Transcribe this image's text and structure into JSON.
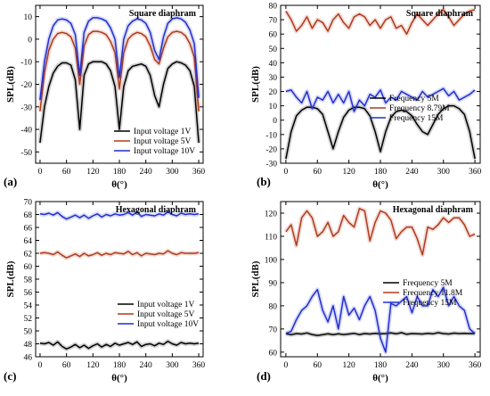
{
  "chart_data": [
    {
      "type": "line",
      "panel_label": "(a)",
      "title": "Square diaphram",
      "xlabel": "θ(°)",
      "ylabel": "SPL(dB)",
      "xlim": [
        -10,
        370
      ],
      "ylim": [
        -55,
        15
      ],
      "xticks": [
        0,
        60,
        120,
        180,
        240,
        300,
        360
      ],
      "yticks": [
        -50,
        -40,
        -30,
        -20,
        -10,
        0,
        10
      ],
      "legend_position": "bottom-right",
      "series": [
        {
          "name": "Input voltage 1V",
          "color": "#000000",
          "x": [
            0,
            10,
            20,
            30,
            40,
            50,
            60,
            70,
            80,
            90,
            100,
            110,
            120,
            130,
            140,
            150,
            160,
            170,
            180,
            190,
            200,
            210,
            220,
            230,
            240,
            250,
            260,
            270,
            280,
            290,
            300,
            310,
            320,
            330,
            340,
            350,
            360
          ],
          "y": [
            -46,
            -30,
            -21,
            -15,
            -12,
            -10.5,
            -10.5,
            -11.5,
            -18,
            -40,
            -16,
            -11,
            -10,
            -10,
            -10,
            -11,
            -14,
            -21,
            -40,
            -21,
            -14,
            -12,
            -11.5,
            -11,
            -12,
            -16,
            -25,
            -30,
            -20,
            -13,
            -11,
            -10,
            -10.5,
            -11.5,
            -14,
            -21,
            -46
          ]
        },
        {
          "name": "Input voltage 5V",
          "color": "#b03a1a",
          "x": [
            0,
            10,
            20,
            30,
            40,
            50,
            60,
            70,
            80,
            90,
            100,
            110,
            120,
            130,
            140,
            150,
            160,
            170,
            180,
            190,
            200,
            210,
            220,
            230,
            240,
            250,
            260,
            270,
            280,
            290,
            300,
            310,
            320,
            330,
            340,
            350,
            360
          ],
          "y": [
            -32,
            -15,
            -5,
            0,
            2.5,
            3,
            2.5,
            1,
            -4,
            -20,
            -3,
            2,
            3.5,
            3.5,
            3,
            2,
            -1,
            -6,
            -22,
            -6,
            0,
            2,
            3,
            2.5,
            1,
            -3,
            -9,
            -11,
            -4,
            1,
            3,
            3.5,
            3,
            1.5,
            -2,
            -8,
            -32
          ]
        },
        {
          "name": "Input voltage 10V",
          "color": "#1f2fd0",
          "x": [
            0,
            10,
            20,
            30,
            40,
            50,
            60,
            70,
            80,
            90,
            100,
            110,
            120,
            130,
            140,
            150,
            160,
            170,
            180,
            190,
            200,
            210,
            220,
            230,
            240,
            250,
            260,
            270,
            280,
            290,
            300,
            310,
            320,
            330,
            340,
            350,
            360
          ],
          "y": [
            -27,
            -10,
            0,
            6,
            8.5,
            9,
            8.5,
            7,
            2,
            -16,
            3,
            8,
            9.5,
            9.5,
            9,
            8,
            5,
            0,
            -17,
            0,
            6,
            8,
            9,
            8.5,
            7,
            3,
            -5,
            -9,
            1,
            7,
            9,
            9.5,
            9,
            7.5,
            4,
            -2,
            -26
          ]
        }
      ]
    },
    {
      "type": "line",
      "panel_label": "(b)",
      "title": "Square diaphram",
      "xlabel": "θ(°)",
      "ylabel": "SPL(dB)",
      "xlim": [
        -10,
        370
      ],
      "ylim": [
        -30,
        80
      ],
      "xticks": [
        0,
        60,
        120,
        180,
        240,
        300,
        360
      ],
      "yticks": [
        -30,
        -20,
        -10,
        0,
        10,
        20,
        30,
        40,
        50,
        60,
        70,
        80
      ],
      "legend_position": "center-right",
      "series": [
        {
          "name": "Frequency 5M",
          "color": "#000000",
          "x": [
            0,
            10,
            20,
            30,
            40,
            50,
            60,
            70,
            80,
            90,
            100,
            110,
            120,
            130,
            140,
            150,
            160,
            170,
            180,
            190,
            200,
            210,
            220,
            230,
            240,
            250,
            260,
            270,
            280,
            290,
            300,
            310,
            320,
            330,
            340,
            350,
            360
          ],
          "y": [
            -27,
            -8,
            3,
            7,
            9,
            9,
            8,
            4,
            -8,
            -20,
            -8,
            2,
            7,
            9,
            9,
            8,
            3,
            -8,
            -22,
            -8,
            2,
            6,
            7,
            6,
            3,
            -3,
            -8,
            -10,
            -3,
            4,
            8,
            10,
            10,
            8,
            4,
            -8,
            -27
          ]
        },
        {
          "name": "Frequency 8.79M",
          "color": "#b03a1a",
          "x": [
            0,
            10,
            20,
            30,
            40,
            50,
            60,
            70,
            80,
            90,
            100,
            110,
            120,
            130,
            140,
            150,
            160,
            170,
            180,
            190,
            200,
            210,
            220,
            230,
            240,
            250,
            260,
            270,
            280,
            290,
            300,
            310,
            320,
            330,
            340,
            350,
            360
          ],
          "y": [
            76,
            70,
            62,
            66,
            72,
            64,
            70,
            68,
            62,
            70,
            74,
            68,
            64,
            72,
            74,
            72,
            66,
            70,
            64,
            70,
            72,
            64,
            66,
            60,
            68,
            74,
            70,
            66,
            70,
            74,
            77,
            72,
            66,
            70,
            74,
            76,
            77
          ]
        },
        {
          "name": "Frequency 15M",
          "color": "#1f2fd0",
          "x": [
            0,
            10,
            20,
            30,
            40,
            50,
            60,
            70,
            80,
            90,
            100,
            110,
            120,
            130,
            140,
            150,
            160,
            170,
            180,
            190,
            200,
            210,
            220,
            230,
            240,
            250,
            260,
            270,
            280,
            290,
            300,
            310,
            320,
            330,
            340,
            350,
            360
          ],
          "y": [
            20,
            21,
            16,
            12,
            20,
            8,
            16,
            14,
            20,
            12,
            18,
            12,
            20,
            6,
            14,
            10,
            18,
            16,
            21,
            12,
            16,
            14,
            20,
            18,
            16,
            14,
            20,
            16,
            18,
            20,
            22,
            17,
            20,
            14,
            16,
            18,
            21
          ]
        }
      ]
    },
    {
      "type": "line",
      "panel_label": "(c)",
      "title": "Hexagonal diaphram",
      "xlabel": "θ(°)",
      "ylabel": "SPL(dB)",
      "xlim": [
        -10,
        370
      ],
      "ylim": [
        46,
        70
      ],
      "xticks": [
        0,
        60,
        120,
        180,
        240,
        300,
        360
      ],
      "yticks": [
        46,
        48,
        50,
        52,
        54,
        56,
        58,
        60,
        62,
        64,
        66,
        68,
        70
      ],
      "legend_position": "lower-right",
      "series": [
        {
          "name": "Input voltage 1V",
          "color": "#000000",
          "x": [
            0,
            10,
            20,
            30,
            40,
            50,
            60,
            70,
            80,
            90,
            100,
            110,
            120,
            130,
            140,
            150,
            160,
            170,
            180,
            190,
            200,
            210,
            220,
            230,
            240,
            250,
            260,
            270,
            280,
            290,
            300,
            310,
            320,
            330,
            340,
            350,
            360
          ],
          "y": [
            48.1,
            48.0,
            48.2,
            47.8,
            48.3,
            47.6,
            47.2,
            47.5,
            47.9,
            47.4,
            47.8,
            47.3,
            47.7,
            48.0,
            47.5,
            47.9,
            47.6,
            48.1,
            47.8,
            48.0,
            48.2,
            47.9,
            48.3,
            47.6,
            47.9,
            48.0,
            47.7,
            48.1,
            47.9,
            48.4,
            48.0,
            47.8,
            48.2,
            48.0,
            48.1,
            48.0,
            48.1
          ]
        },
        {
          "name": "Input voltage 5V",
          "color": "#b03a1a",
          "x": [
            0,
            10,
            20,
            30,
            40,
            50,
            60,
            70,
            80,
            90,
            100,
            110,
            120,
            130,
            140,
            150,
            160,
            170,
            180,
            190,
            200,
            210,
            220,
            230,
            240,
            250,
            260,
            270,
            280,
            290,
            300,
            310,
            320,
            330,
            340,
            350,
            360
          ],
          "y": [
            62.0,
            62.1,
            62.0,
            61.8,
            62.2,
            61.7,
            61.3,
            61.6,
            61.9,
            61.5,
            62.0,
            61.6,
            61.8,
            62.1,
            61.7,
            62.0,
            61.8,
            62.1,
            62.0,
            61.9,
            62.3,
            61.8,
            62.1,
            61.6,
            62.0,
            61.9,
            61.8,
            62.0,
            61.9,
            62.4,
            62.0,
            61.8,
            62.1,
            62.0,
            62.0,
            62.0,
            62.1
          ]
        },
        {
          "name": "Input voltage 10V",
          "color": "#1f2fd0",
          "x": [
            0,
            10,
            20,
            30,
            40,
            50,
            60,
            70,
            80,
            90,
            100,
            110,
            120,
            130,
            140,
            150,
            160,
            170,
            180,
            190,
            200,
            210,
            220,
            230,
            240,
            250,
            260,
            270,
            280,
            290,
            300,
            310,
            320,
            330,
            340,
            350,
            360
          ],
          "y": [
            68.1,
            68.0,
            68.2,
            67.9,
            68.3,
            67.7,
            67.3,
            67.6,
            67.9,
            67.5,
            67.9,
            67.4,
            67.8,
            68.1,
            67.6,
            68.0,
            67.8,
            68.1,
            67.9,
            68.0,
            68.3,
            67.9,
            68.4,
            67.7,
            68.0,
            67.9,
            67.8,
            68.1,
            67.9,
            68.4,
            68.0,
            67.8,
            68.2,
            68.0,
            68.1,
            68.0,
            68.1
          ]
        }
      ]
    },
    {
      "type": "line",
      "panel_label": "(d)",
      "title": "Hexagonal diaphram",
      "xlabel": "θ(°)",
      "ylabel": "SPL(dB)",
      "xlim": [
        -10,
        370
      ],
      "ylim": [
        58,
        125
      ],
      "xticks": [
        0,
        60,
        120,
        180,
        240,
        300,
        360
      ],
      "yticks": [
        60,
        70,
        80,
        90,
        100,
        110,
        120
      ],
      "legend_position": "center-right",
      "series": [
        {
          "name": "Frequency 5M",
          "color": "#000000",
          "x": [
            0,
            10,
            20,
            30,
            40,
            50,
            60,
            70,
            80,
            90,
            100,
            110,
            120,
            130,
            140,
            150,
            160,
            170,
            180,
            190,
            200,
            210,
            220,
            230,
            240,
            250,
            260,
            270,
            280,
            290,
            300,
            310,
            320,
            330,
            340,
            350,
            360
          ],
          "y": [
            68,
            67.5,
            68,
            67.8,
            68.3,
            67.6,
            67.2,
            67.5,
            67.9,
            67.5,
            67.9,
            67.6,
            67.8,
            68.1,
            67.6,
            68.0,
            67.8,
            68.1,
            67.9,
            68.0,
            68.3,
            67.9,
            68.4,
            67.7,
            68.0,
            67.9,
            67.8,
            68.1,
            67.9,
            68.4,
            68.0,
            67.8,
            68.2,
            68.0,
            68.1,
            68.0,
            68.0
          ]
        },
        {
          "name": "Frequency 11.8M",
          "color": "#b03a1a",
          "x": [
            0,
            10,
            20,
            30,
            40,
            50,
            60,
            70,
            80,
            90,
            100,
            110,
            120,
            130,
            140,
            150,
            160,
            170,
            180,
            190,
            200,
            210,
            220,
            230,
            240,
            250,
            260,
            270,
            280,
            290,
            300,
            310,
            320,
            330,
            340,
            350,
            360
          ],
          "y": [
            112,
            115,
            106,
            118,
            121,
            118,
            110,
            112,
            116,
            110,
            112,
            119,
            116,
            114,
            122,
            121,
            108,
            116,
            121,
            120,
            117,
            109,
            112,
            114,
            114,
            109,
            102,
            114,
            113,
            115,
            118,
            116,
            118,
            118,
            115,
            110,
            111
          ]
        },
        {
          "name": "Frequency 15M",
          "color": "#1f2fd0",
          "x": [
            0,
            10,
            20,
            30,
            40,
            50,
            60,
            70,
            80,
            90,
            100,
            110,
            120,
            130,
            140,
            150,
            160,
            170,
            180,
            190,
            200,
            210,
            220,
            230,
            240,
            250,
            260,
            270,
            280,
            290,
            300,
            310,
            320,
            330,
            340,
            350,
            360
          ],
          "y": [
            68,
            69,
            74,
            78,
            80,
            84,
            87,
            78,
            73,
            80,
            70,
            84,
            76,
            79,
            74,
            80,
            84,
            78,
            66,
            60,
            81,
            80,
            82,
            84,
            77,
            84,
            80,
            80,
            87,
            84,
            88,
            80,
            84,
            80,
            78,
            70,
            68
          ]
        }
      ]
    }
  ]
}
